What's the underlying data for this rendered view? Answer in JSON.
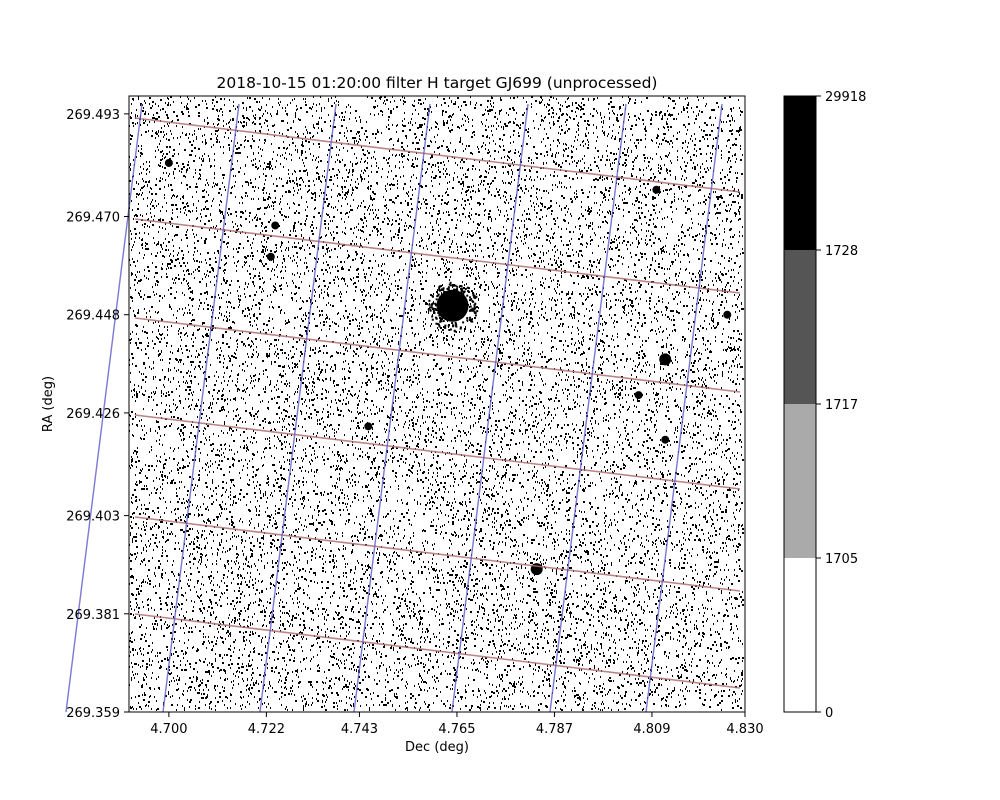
{
  "chart_data": {
    "type": "heatmap",
    "title": "2018-10-15 01:20:00 filter H target GJ699 (unprocessed)",
    "xlabel": "Dec (deg)",
    "ylabel": "RA (deg)",
    "xlim": [
      4.691,
      4.83
    ],
    "ylim": [
      269.359,
      269.497
    ],
    "x_ticks": [
      {
        "value": 4.7,
        "label": "4.700"
      },
      {
        "value": 4.722,
        "label": "4.722"
      },
      {
        "value": 4.743,
        "label": "4.743"
      },
      {
        "value": 4.765,
        "label": "4.765"
      },
      {
        "value": 4.787,
        "label": "4.787"
      },
      {
        "value": 4.809,
        "label": "4.809"
      },
      {
        "value": 4.83,
        "label": "4.830"
      }
    ],
    "y_ticks": [
      {
        "value": 269.359,
        "label": "269.359"
      },
      {
        "value": 269.381,
        "label": "269.381"
      },
      {
        "value": 269.403,
        "label": "269.403"
      },
      {
        "value": 269.426,
        "label": "269.426"
      },
      {
        "value": 269.448,
        "label": "269.448"
      },
      {
        "value": 269.47,
        "label": "269.470"
      },
      {
        "value": 269.493,
        "label": "269.493"
      }
    ],
    "colorbar": {
      "bins": [
        {
          "from": 0,
          "to": 1705,
          "color": "#ffffff"
        },
        {
          "from": 1705,
          "to": 1717,
          "color": "#aaaaaa"
        },
        {
          "from": 1717,
          "to": 1728,
          "color": "#555555"
        },
        {
          "from": 1728,
          "to": 29918,
          "color": "#000000"
        }
      ],
      "tick_labels": [
        "0",
        "1705",
        "1717",
        "1728",
        "29918"
      ]
    },
    "colors": {
      "ra_grid": "#b07070",
      "dec_grid": "#5a5acc",
      "background": "#ffffff"
    },
    "sources": [
      {
        "name": "target-star",
        "x": 4.764,
        "y": 269.45,
        "size": "large"
      },
      {
        "name": "star",
        "x": 4.7,
        "y": 269.482,
        "size": "small"
      },
      {
        "name": "star",
        "x": 4.724,
        "y": 269.468,
        "size": "small"
      },
      {
        "name": "star",
        "x": 4.723,
        "y": 269.461,
        "size": "small"
      },
      {
        "name": "star",
        "x": 4.745,
        "y": 269.423,
        "size": "small"
      },
      {
        "name": "star",
        "x": 4.783,
        "y": 269.391,
        "size": "medium"
      },
      {
        "name": "star",
        "x": 4.812,
        "y": 269.438,
        "size": "medium"
      },
      {
        "name": "star",
        "x": 4.812,
        "y": 269.42,
        "size": "small"
      },
      {
        "name": "star",
        "x": 4.826,
        "y": 269.448,
        "size": "small"
      },
      {
        "name": "star",
        "x": 4.81,
        "y": 269.476,
        "size": "small"
      },
      {
        "name": "star",
        "x": 4.806,
        "y": 269.43,
        "size": "small"
      }
    ]
  }
}
